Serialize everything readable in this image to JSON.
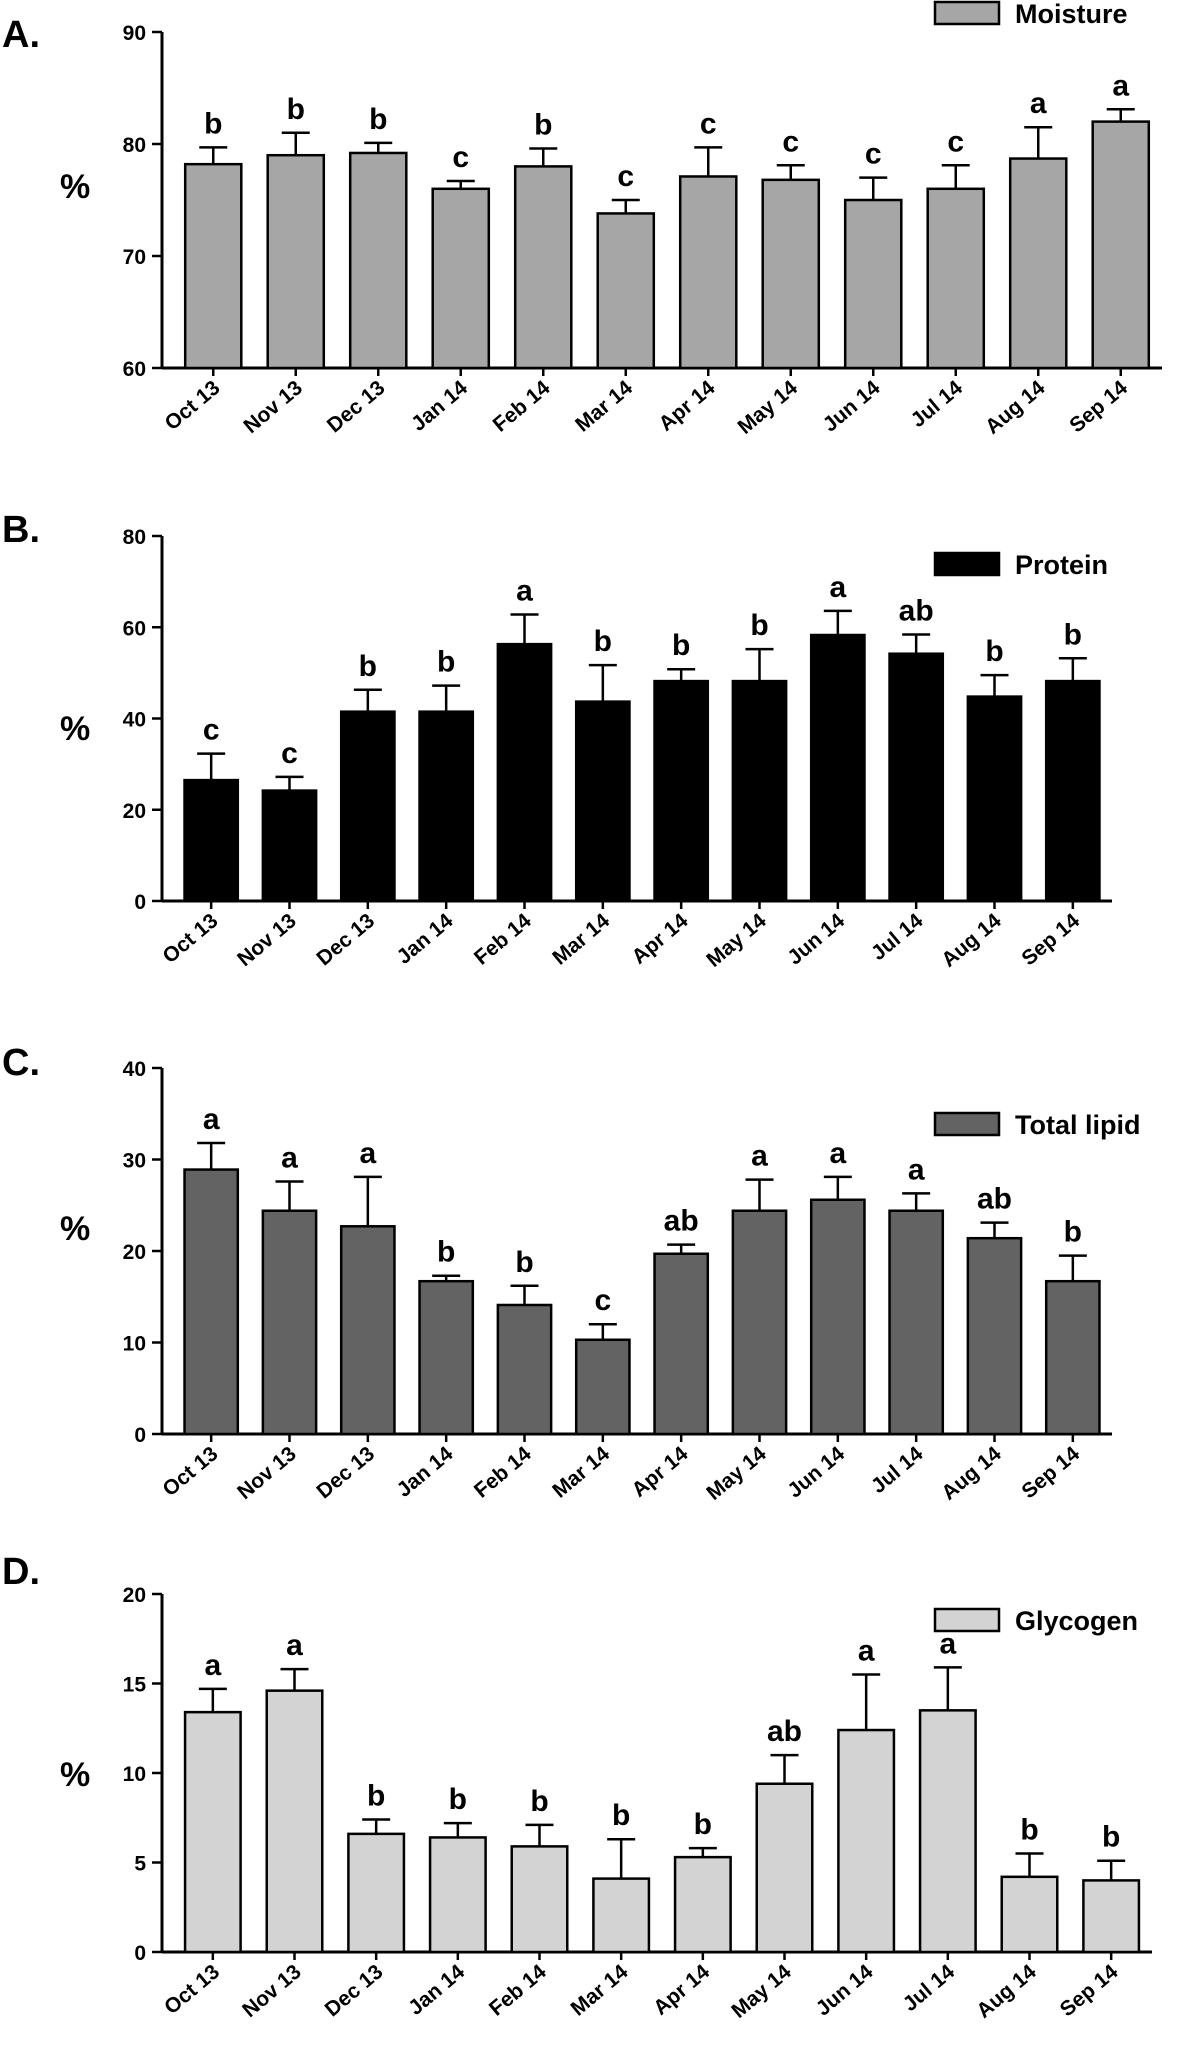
{
  "chart_data": [
    {
      "type": "bar",
      "panel_label": "A.",
      "ylabel": "%",
      "ylim": [
        60,
        90
      ],
      "yticks": [
        60,
        70,
        80,
        90
      ],
      "legend": {
        "label": "Moisture",
        "placement": "top-right"
      },
      "color": "#a6a6a6",
      "categories": [
        "Oct 13",
        "Nov 13",
        "Dec 13",
        "Jan 14",
        "Feb 14",
        "Mar 14",
        "Apr 14",
        "May 14",
        "Jun 14",
        "Jul 14",
        "Aug 14",
        "Sep 14"
      ],
      "values": [
        78.2,
        79.0,
        79.2,
        76.0,
        78.0,
        73.8,
        77.1,
        76.8,
        75.0,
        76.0,
        78.7,
        82.0
      ],
      "errors": [
        1.5,
        2.0,
        0.9,
        0.7,
        1.6,
        1.2,
        2.6,
        1.3,
        2.0,
        2.1,
        2.8,
        1.1
      ],
      "significance": [
        "b",
        "b",
        "b",
        "c",
        "b",
        "c",
        "c",
        "c",
        "c",
        "c",
        "a",
        "a"
      ]
    },
    {
      "type": "bar",
      "panel_label": "B.",
      "ylabel": "%",
      "ylim": [
        0,
        80
      ],
      "yticks": [
        0,
        20,
        40,
        60,
        80
      ],
      "legend": {
        "label": "Protein",
        "placement": "top-right"
      },
      "color": "#000000",
      "categories": [
        "Oct 13",
        "Nov 13",
        "Dec 13",
        "Jan 14",
        "Feb 14",
        "Mar 14",
        "Apr 14",
        "May 14",
        "Jun 14",
        "Jul 14",
        "Aug 14",
        "Sep 14"
      ],
      "values": [
        26.5,
        24.2,
        41.5,
        41.5,
        56.3,
        43.7,
        48.2,
        48.2,
        58.3,
        54.2,
        44.8,
        48.2
      ],
      "errors": [
        5.8,
        3.0,
        4.8,
        5.7,
        6.5,
        8.0,
        2.6,
        7.0,
        5.3,
        4.2,
        4.7,
        5.0
      ],
      "significance": [
        "c",
        "c",
        "b",
        "b",
        "a",
        "b",
        "b",
        "b",
        "a",
        "ab",
        "b",
        "b"
      ]
    },
    {
      "type": "bar",
      "panel_label": "C.",
      "ylabel": "%",
      "ylim": [
        0,
        40
      ],
      "yticks": [
        0,
        10,
        20,
        30,
        40
      ],
      "legend": {
        "label": "Total lipid",
        "placement": "top-right"
      },
      "color": "#636363",
      "categories": [
        "Oct 13",
        "Nov 13",
        "Dec 13",
        "Jan 14",
        "Feb 14",
        "Mar 14",
        "Apr 14",
        "May 14",
        "Jun 14",
        "Jul 14",
        "Aug 14",
        "Sep 14"
      ],
      "values": [
        28.9,
        24.4,
        22.7,
        16.7,
        14.1,
        10.3,
        19.7,
        24.4,
        25.6,
        24.4,
        21.4,
        16.7
      ],
      "errors": [
        2.9,
        3.2,
        5.4,
        0.6,
        2.1,
        1.7,
        1.0,
        3.4,
        2.5,
        1.9,
        1.7,
        2.8
      ],
      "significance": [
        "a",
        "a",
        "a",
        "b",
        "b",
        "c",
        "ab",
        "a",
        "a",
        "a",
        "ab",
        "b"
      ]
    },
    {
      "type": "bar",
      "panel_label": "D.",
      "ylabel": "%",
      "ylim": [
        0,
        20
      ],
      "yticks": [
        0,
        5,
        10,
        15,
        20
      ],
      "legend": {
        "label": "Glycogen",
        "placement": "top-right"
      },
      "color": "#d3d3d3",
      "categories": [
        "Oct 13",
        "Nov 13",
        "Dec 13",
        "Jan 14",
        "Feb 14",
        "Mar 14",
        "Apr 14",
        "May 14",
        "Jun 14",
        "Jul 14",
        "Aug 14",
        "Sep 14"
      ],
      "values": [
        13.4,
        14.6,
        6.6,
        6.4,
        5.9,
        4.1,
        5.3,
        9.4,
        12.4,
        13.5,
        4.2,
        4.0
      ],
      "errors": [
        1.3,
        1.2,
        0.8,
        0.8,
        1.2,
        2.2,
        0.5,
        1.6,
        3.1,
        2.4,
        1.3,
        1.1
      ],
      "significance": [
        "a",
        "a",
        "b",
        "b",
        "b",
        "b",
        "b",
        "ab",
        "a",
        "a",
        "b",
        "b"
      ]
    }
  ]
}
